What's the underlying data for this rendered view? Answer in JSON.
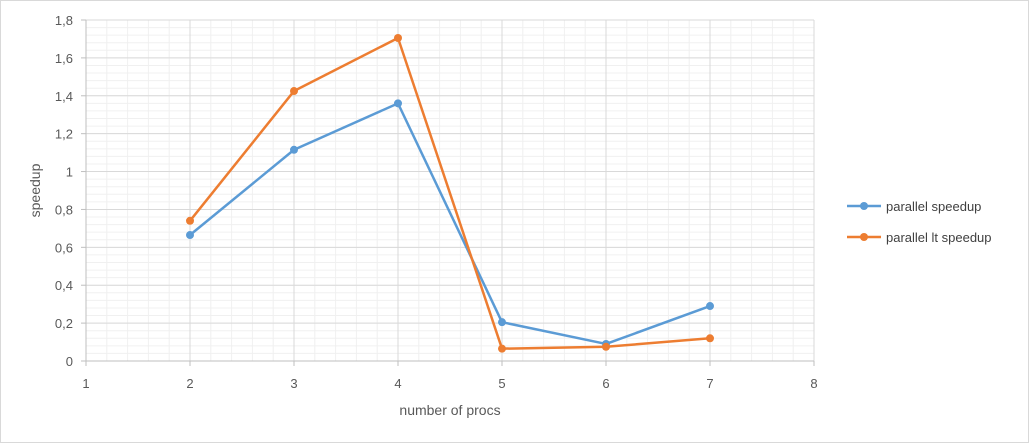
{
  "chart_data": {
    "type": "line",
    "title": "",
    "xlabel": "number of procs",
    "ylabel": "speedup",
    "xlim": [
      1,
      8
    ],
    "ylim": [
      0,
      1.8
    ],
    "x_ticks": [
      1,
      2,
      3,
      4,
      5,
      6,
      7,
      8
    ],
    "x_tick_labels": [
      "1",
      "2",
      "3",
      "4",
      "5",
      "6",
      "7",
      "8"
    ],
    "y_ticks": [
      0,
      0.2,
      0.4,
      0.6,
      0.8,
      1.0,
      1.2,
      1.4,
      1.6,
      1.8
    ],
    "y_tick_labels": [
      "0",
      "0,2",
      "0,4",
      "0,6",
      "0,8",
      "1",
      "1,2",
      "1,4",
      "1,6",
      "1,8"
    ],
    "grid": true,
    "minor_grid": true,
    "legend_position": "right",
    "series": [
      {
        "name": "parallel speedup",
        "color": "#5b9bd5",
        "x": [
          2,
          3,
          4,
          5,
          6,
          7
        ],
        "y": [
          0.665,
          1.115,
          1.36,
          0.205,
          0.09,
          0.29
        ]
      },
      {
        "name": "parallel lt speedup",
        "color": "#ed7d31",
        "x": [
          2,
          3,
          4,
          5,
          6,
          7
        ],
        "y": [
          0.74,
          1.425,
          1.705,
          0.065,
          0.075,
          0.12
        ]
      }
    ]
  }
}
